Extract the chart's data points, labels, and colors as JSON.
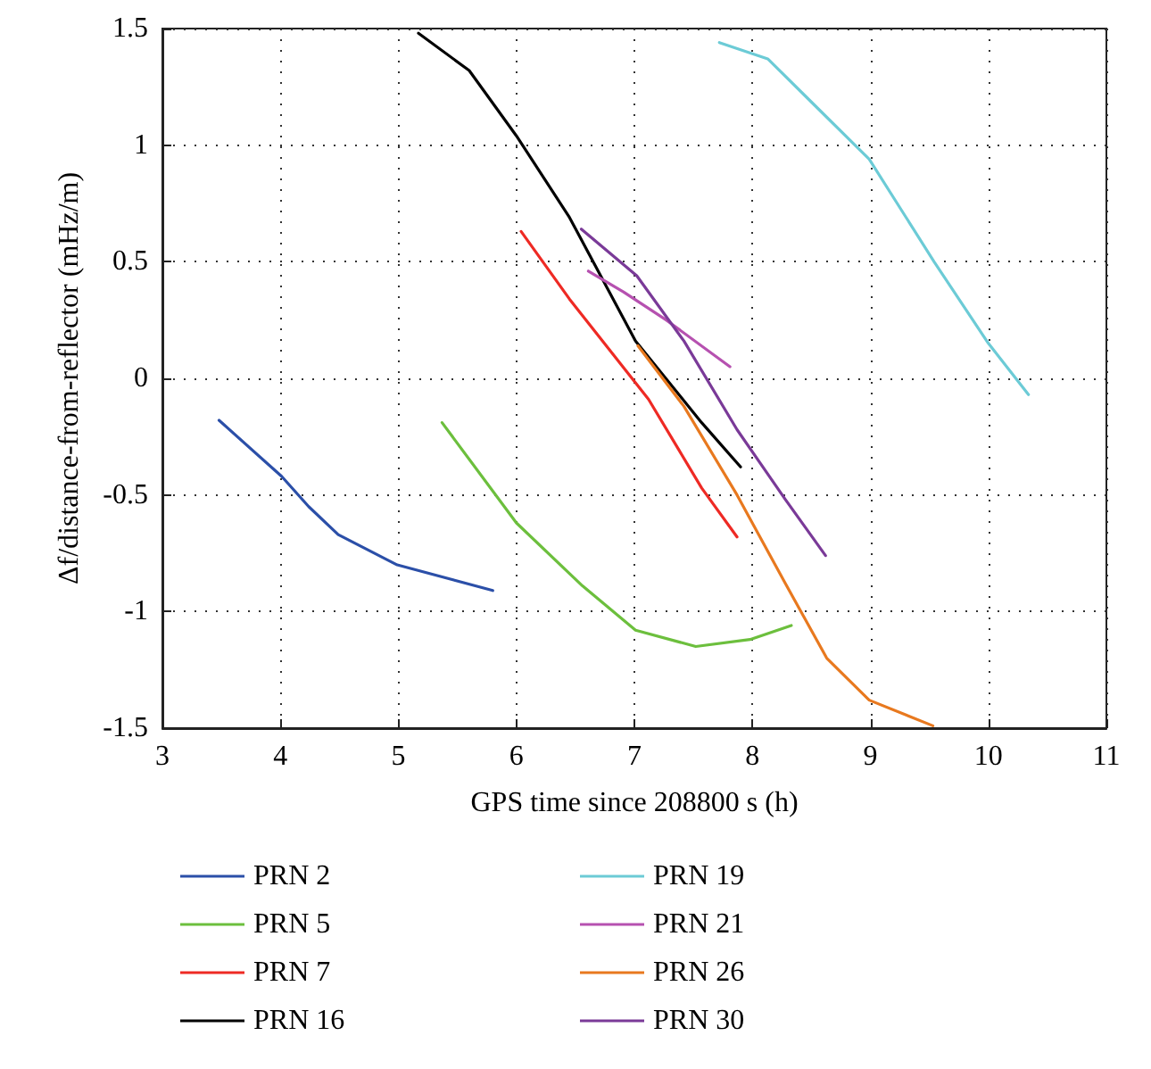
{
  "chart_data": {
    "type": "line",
    "xlabel": "GPS time since 208800 s (h)",
    "ylabel": "Δf/distance-from-reflector (mHz/m)",
    "xlim": [
      3,
      11
    ],
    "xticks": [
      3,
      4,
      5,
      6,
      7,
      8,
      9,
      10,
      11
    ],
    "ylim": [
      -1.5,
      1.5
    ],
    "yticks": [
      -1.5,
      -1,
      -0.5,
      0,
      0.5,
      1,
      1.5
    ],
    "grid": true,
    "legend": "bottom",
    "marker": "none",
    "line_style": "solid",
    "series": [
      {
        "name": "PRN 2",
        "color": "#2b4fa8",
        "x": [
          3.48,
          4.01,
          4.24,
          4.49,
          4.99,
          5.8
        ],
        "values": [
          -0.18,
          -0.42,
          -0.55,
          -0.67,
          -0.8,
          -0.91
        ]
      },
      {
        "name": "PRN 5",
        "color": "#6cbf3d",
        "x": [
          5.37,
          6.0,
          6.56,
          7.01,
          7.52,
          7.98,
          8.33
        ],
        "values": [
          -0.19,
          -0.62,
          -0.89,
          -1.08,
          -1.15,
          -1.12,
          -1.06
        ]
      },
      {
        "name": "PRN 7",
        "color": "#ee2a24",
        "x": [
          6.04,
          6.45,
          7.12,
          7.57,
          7.87
        ],
        "values": [
          0.63,
          0.34,
          -0.09,
          -0.47,
          -0.68
        ]
      },
      {
        "name": "PRN 16",
        "color": "#000000",
        "x": [
          5.17,
          5.6,
          6.0,
          6.45,
          7.01,
          7.57,
          7.9
        ],
        "values": [
          1.48,
          1.32,
          1.04,
          0.69,
          0.16,
          -0.19,
          -0.38
        ]
      },
      {
        "name": "PRN 19",
        "color": "#6ccbd6",
        "x": [
          7.72,
          8.13,
          8.53,
          8.99,
          9.54,
          10.0,
          10.34
        ],
        "values": [
          1.44,
          1.37,
          1.17,
          0.94,
          0.5,
          0.15,
          -0.07
        ]
      },
      {
        "name": "PRN 21",
        "color": "#b651b0",
        "x": [
          6.61,
          6.91,
          7.27,
          7.81
        ],
        "values": [
          0.46,
          0.37,
          0.25,
          0.05
        ]
      },
      {
        "name": "PRN 26",
        "color": "#e8791f",
        "x": [
          7.03,
          7.42,
          7.87,
          8.28,
          8.63,
          8.99,
          9.53
        ],
        "values": [
          0.14,
          -0.12,
          -0.5,
          -0.88,
          -1.2,
          -1.38,
          -1.49
        ]
      },
      {
        "name": "PRN 30",
        "color": "#7a3a98",
        "x": [
          6.55,
          7.02,
          7.42,
          7.87,
          8.28,
          8.62
        ],
        "values": [
          0.64,
          0.44,
          0.16,
          -0.22,
          -0.52,
          -0.76
        ]
      }
    ]
  }
}
